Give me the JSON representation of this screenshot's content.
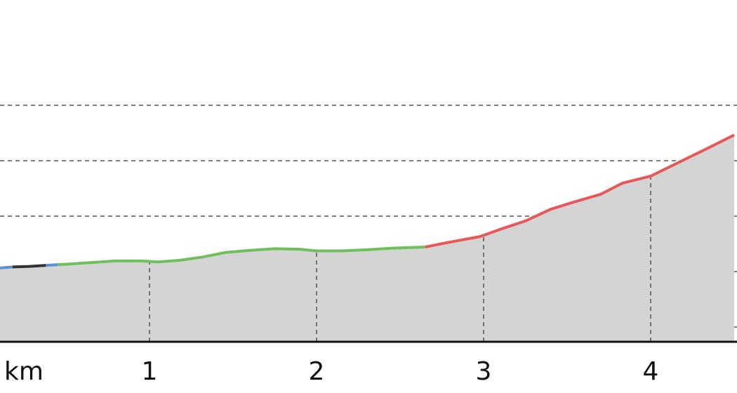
{
  "chart_data": {
    "type": "area",
    "xlabel": "km",
    "x_ticks": [
      1,
      2,
      3,
      4
    ],
    "xlim": [
      0.1,
      4.5
    ],
    "grid": true,
    "fill_color": "#d4d4d4",
    "colors": {
      "road": "#5b8fd6",
      "track": "#333333",
      "gentle": "#6fbf5c",
      "steep": "#e8585a"
    },
    "profile": [
      [
        0.1,
        0.12
      ],
      [
        0.18,
        0.14
      ],
      [
        0.28,
        0.15
      ],
      [
        0.38,
        0.17
      ],
      [
        0.5,
        0.19
      ],
      [
        0.65,
        0.22
      ],
      [
        0.8,
        0.25
      ],
      [
        0.95,
        0.25
      ],
      [
        1.05,
        0.23
      ],
      [
        1.18,
        0.26
      ],
      [
        1.32,
        0.32
      ],
      [
        1.45,
        0.4
      ],
      [
        1.6,
        0.44
      ],
      [
        1.75,
        0.47
      ],
      [
        1.9,
        0.46
      ],
      [
        2.0,
        0.43
      ],
      [
        2.15,
        0.43
      ],
      [
        2.3,
        0.45
      ],
      [
        2.45,
        0.48
      ],
      [
        2.65,
        0.5
      ],
      [
        2.8,
        0.59
      ],
      [
        2.98,
        0.69
      ],
      [
        3.1,
        0.82
      ],
      [
        3.25,
        0.97
      ],
      [
        3.4,
        1.18
      ],
      [
        3.55,
        1.32
      ],
      [
        3.7,
        1.45
      ],
      [
        3.83,
        1.65
      ],
      [
        4.0,
        1.78
      ],
      [
        4.15,
        2.0
      ],
      [
        4.3,
        2.22
      ],
      [
        4.5,
        2.52
      ]
    ],
    "segments": [
      {
        "kind": "road",
        "from": 0.1,
        "to": 0.18
      },
      {
        "kind": "track",
        "from": 0.18,
        "to": 0.38
      },
      {
        "kind": "road",
        "from": 0.38,
        "to": 0.45
      },
      {
        "kind": "gentle",
        "from": 0.45,
        "to": 2.65
      },
      {
        "kind": "steep",
        "from": 2.65,
        "to": 4.5
      }
    ]
  }
}
